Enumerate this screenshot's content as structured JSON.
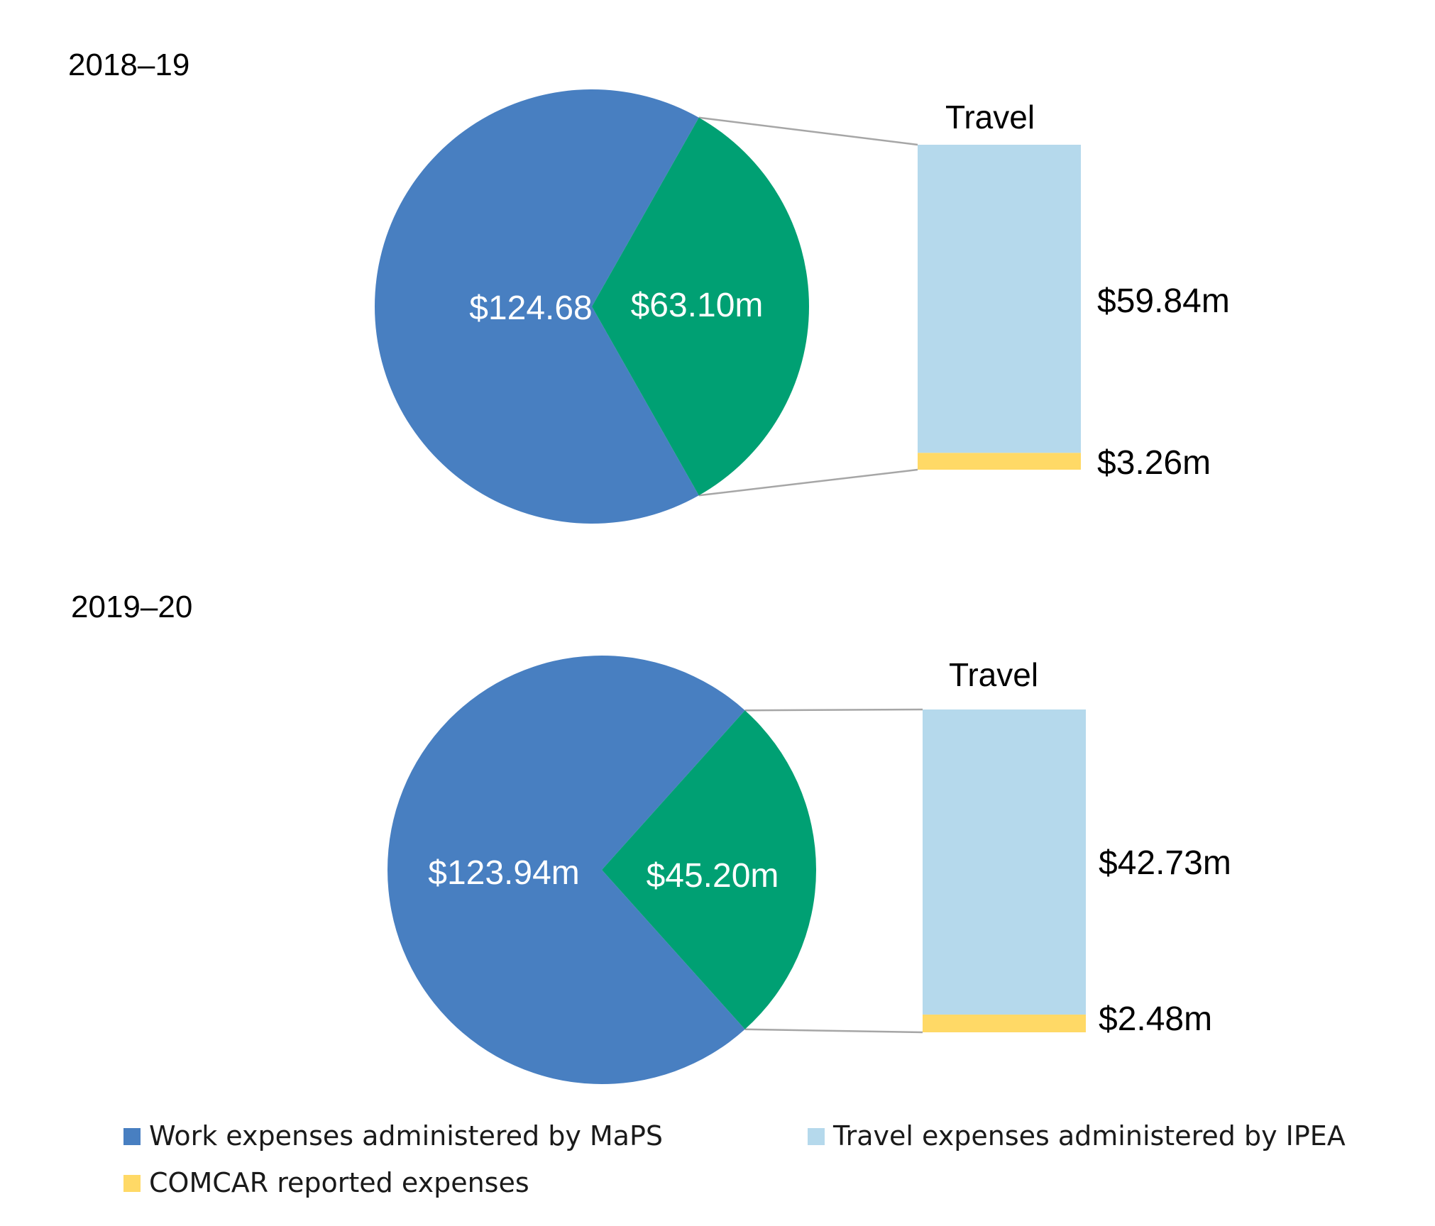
{
  "chart_data": [
    {
      "type": "pie",
      "title": "2018–19",
      "slices": [
        {
          "name": "Work expenses administered by MaPS",
          "value": 124.68,
          "label": "$124.68",
          "color": "#487FC1"
        },
        {
          "name": "Travel",
          "value": 63.1,
          "label": "$63.10m",
          "color": "#00A073"
        }
      ],
      "breakdown": {
        "title": "Travel",
        "type": "stacked_bar",
        "segments": [
          {
            "name": "Travel expenses administered by IPEA",
            "value": 59.84,
            "label": "$59.84m",
            "color": "#B5D9EC"
          },
          {
            "name": "COMCAR reported expenses",
            "value": 3.26,
            "label": "$3.26m",
            "color": "#FFD966"
          }
        ]
      }
    },
    {
      "type": "pie",
      "title": "2019–20",
      "slices": [
        {
          "name": "Work expenses administered by MaPS",
          "value": 123.94,
          "label": "$123.94m",
          "color": "#487FC1"
        },
        {
          "name": "Travel",
          "value": 45.2,
          "label": "$45.20m",
          "color": "#00A073"
        }
      ],
      "breakdown": {
        "title": "Travel",
        "type": "stacked_bar",
        "segments": [
          {
            "name": "Travel expenses administered by IPEA",
            "value": 42.73,
            "label": "$42.73m",
            "color": "#B5D9EC"
          },
          {
            "name": "COMCAR reported expenses",
            "value": 2.48,
            "label": "$2.48m",
            "color": "#FFD966"
          }
        ]
      }
    }
  ],
  "legend": [
    {
      "label": "Work expenses administered by MaPS",
      "color": "#487FC1"
    },
    {
      "label": "Travel expenses administered by IPEA",
      "color": "#B5D9EC"
    },
    {
      "label": "COMCAR reported expenses",
      "color": "#FFD966"
    }
  ],
  "connector_color": "#A6A6A6"
}
